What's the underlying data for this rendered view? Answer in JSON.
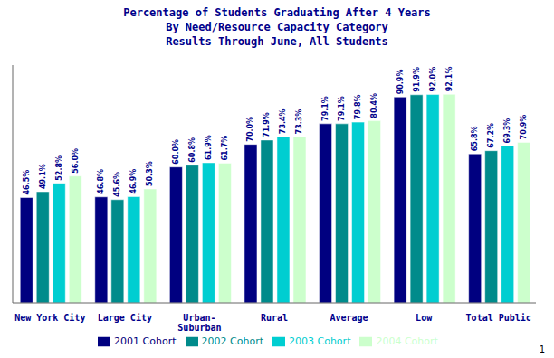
{
  "chart_data": {
    "type": "bar",
    "title": "Percentage of Students Graduating After 4 Years",
    "subtitle": "By Need/Resource Capacity Category\nResults Through June, All Students",
    "categories": [
      "New York City",
      "Large City",
      "Urban-\nSuburban",
      "Rural",
      "Average",
      "Low",
      "Total Public"
    ],
    "series": [
      {
        "name": "2001 Cohort",
        "color": "#000080",
        "values": [
          46.5,
          46.8,
          60.0,
          70.0,
          79.1,
          90.9,
          65.8
        ],
        "value_labels": [
          "46.5%",
          "46.8%",
          "60.0%",
          "70.0%",
          "79.1%",
          "90.9%",
          "65.8%"
        ]
      },
      {
        "name": "2002 Cohort",
        "color": "#008B8B",
        "values": [
          49.1,
          45.6,
          60.8,
          71.9,
          79.1,
          91.9,
          67.2
        ],
        "value_labels": [
          "49.1%",
          "45.6%",
          "60.8%",
          "71.9%",
          "79.1%",
          "91.9%",
          "67.2%"
        ]
      },
      {
        "name": "2003 Cohort",
        "color": "#00CED1",
        "values": [
          52.8,
          46.9,
          61.9,
          73.4,
          79.8,
          92.0,
          69.3
        ],
        "value_labels": [
          "52.8%",
          "46.9%",
          "61.9%",
          "73.4%",
          "79.8%",
          "92.0%",
          "69.3%"
        ]
      },
      {
        "name": "2004 Cohort",
        "color": "#CCFFCC",
        "values": [
          56.0,
          50.3,
          61.7,
          73.3,
          80.4,
          92.1,
          70.9
        ],
        "value_labels": [
          "56.0%",
          "50.3%",
          "61.7%",
          "73.3%",
          "80.4%",
          "92.1%",
          "70.9%"
        ]
      }
    ],
    "ylim": [
      0,
      105
    ],
    "data_labels": true,
    "tick_labels": "x",
    "grid": false,
    "legend": "bottom",
    "annotations": [
      "1"
    ]
  }
}
